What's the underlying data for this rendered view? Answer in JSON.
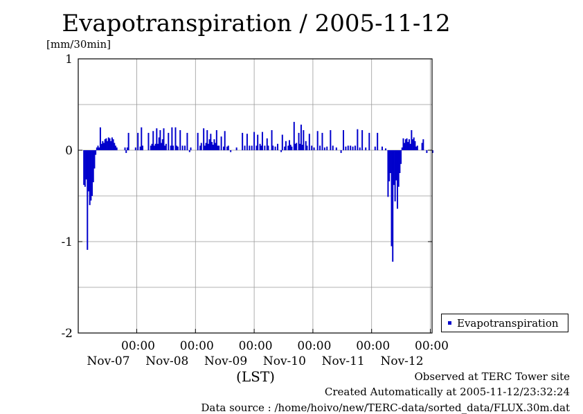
{
  "title": "Evapotranspiration / 2005-11-12",
  "units": "[mm/30min]",
  "footer": {
    "observed": "Observed at TERC Tower site",
    "created": "Created Automatically at 2005-11-12/23:32:24",
    "source": "Data source : /home/hoivo/new/TERC-data/sorted_data/FLUX.30m.dat"
  },
  "colors": {
    "series": "#0000cc",
    "grid": "#888888"
  },
  "chart_data": {
    "type": "bar",
    "title": "Evapotranspiration / 2005-11-12",
    "ylabel": "[mm/30min]",
    "xlabel": "(LST)",
    "ylim": [
      -2,
      1
    ],
    "yticks": [
      1,
      0,
      -1,
      -2
    ],
    "xlim_days": [
      -0.92,
      5.1
    ],
    "xticks": [
      {
        "time": "00:00",
        "date": "Nov-07"
      },
      {
        "time": "00:00",
        "date": "Nov-08"
      },
      {
        "time": "00:00",
        "date": "Nov-09"
      },
      {
        "time": "00:00",
        "date": "Nov-10"
      },
      {
        "time": "00:00",
        "date": "Nov-11"
      },
      {
        "time": "00:00",
        "date": "Nov-12"
      }
    ],
    "grid": true,
    "legend": "right",
    "series": [
      {
        "name": "Evapotranspiration",
        "points": [
          [
            -0.9,
            -0.38
          ],
          [
            -0.88,
            -0.4
          ],
          [
            -0.86,
            -0.32
          ],
          [
            -0.84,
            -1.09
          ],
          [
            -0.82,
            -0.45
          ],
          [
            -0.8,
            -0.6
          ],
          [
            -0.78,
            -0.55
          ],
          [
            -0.76,
            -0.5
          ],
          [
            -0.74,
            -0.35
          ],
          [
            -0.72,
            -0.2
          ],
          [
            -0.7,
            -0.05
          ],
          [
            -0.68,
            0.03
          ],
          [
            -0.66,
            0.05
          ],
          [
            -0.64,
            0.03
          ],
          [
            -0.62,
            0.25
          ],
          [
            -0.6,
            0.07
          ],
          [
            -0.58,
            0.1
          ],
          [
            -0.56,
            0.08
          ],
          [
            -0.54,
            0.12
          ],
          [
            -0.52,
            0.13
          ],
          [
            -0.5,
            0.1
          ],
          [
            -0.48,
            0.14
          ],
          [
            -0.46,
            0.13
          ],
          [
            -0.44,
            0.1
          ],
          [
            -0.42,
            0.14
          ],
          [
            -0.4,
            0.12
          ],
          [
            -0.38,
            0.08
          ],
          [
            -0.36,
            0.05
          ],
          [
            -0.34,
            0.03
          ],
          [
            -0.2,
            0.03
          ],
          [
            -0.18,
            -0.03
          ],
          [
            -0.16,
            0.03
          ],
          [
            -0.14,
            0.19
          ],
          [
            -0.02,
            0.03
          ],
          [
            0.02,
            0.19
          ],
          [
            0.06,
            0.04
          ],
          [
            0.08,
            0.25
          ],
          [
            0.1,
            0.05
          ],
          [
            0.2,
            0.19
          ],
          [
            0.24,
            0.05
          ],
          [
            0.26,
            0.07
          ],
          [
            0.28,
            0.21
          ],
          [
            0.3,
            0.05
          ],
          [
            0.32,
            0.07
          ],
          [
            0.34,
            0.24
          ],
          [
            0.36,
            0.07
          ],
          [
            0.38,
            0.14
          ],
          [
            0.4,
            0.22
          ],
          [
            0.42,
            0.08
          ],
          [
            0.44,
            0.12
          ],
          [
            0.46,
            0.24
          ],
          [
            0.48,
            0.05
          ],
          [
            0.5,
            0.07
          ],
          [
            0.54,
            0.19
          ],
          [
            0.58,
            0.05
          ],
          [
            0.6,
            0.25
          ],
          [
            0.62,
            0.05
          ],
          [
            0.66,
            0.25
          ],
          [
            0.68,
            0.05
          ],
          [
            0.7,
            0.04
          ],
          [
            0.74,
            0.22
          ],
          [
            0.78,
            0.05
          ],
          [
            0.82,
            0.05
          ],
          [
            0.86,
            0.19
          ],
          [
            0.9,
            -0.02
          ],
          [
            0.92,
            0.03
          ],
          [
            1.04,
            0.19
          ],
          [
            1.08,
            0.05
          ],
          [
            1.1,
            0.08
          ],
          [
            1.14,
            0.24
          ],
          [
            1.16,
            0.05
          ],
          [
            1.18,
            0.08
          ],
          [
            1.2,
            0.22
          ],
          [
            1.22,
            0.07
          ],
          [
            1.24,
            0.12
          ],
          [
            1.26,
            0.18
          ],
          [
            1.28,
            0.09
          ],
          [
            1.3,
            0.06
          ],
          [
            1.32,
            0.12
          ],
          [
            1.34,
            0.08
          ],
          [
            1.36,
            0.22
          ],
          [
            1.38,
            0.05
          ],
          [
            1.4,
            0.05
          ],
          [
            1.44,
            0.15
          ],
          [
            1.48,
            0.04
          ],
          [
            1.5,
            0.21
          ],
          [
            1.54,
            0.04
          ],
          [
            1.56,
            0.05
          ],
          [
            1.6,
            -0.02
          ],
          [
            1.7,
            0.03
          ],
          [
            1.8,
            0.19
          ],
          [
            1.84,
            0.05
          ],
          [
            1.88,
            0.18
          ],
          [
            1.92,
            0.05
          ],
          [
            1.96,
            0.05
          ],
          [
            2.0,
            0.2
          ],
          [
            2.04,
            0.05
          ],
          [
            2.06,
            0.17
          ],
          [
            2.1,
            0.07
          ],
          [
            2.12,
            0.05
          ],
          [
            2.14,
            0.2
          ],
          [
            2.18,
            0.05
          ],
          [
            2.22,
            0.13
          ],
          [
            2.24,
            0.05
          ],
          [
            2.3,
            0.22
          ],
          [
            2.32,
            0.05
          ],
          [
            2.36,
            0.04
          ],
          [
            2.4,
            0.07
          ],
          [
            2.46,
            -0.02
          ],
          [
            2.48,
            0.17
          ],
          [
            2.52,
            0.04
          ],
          [
            2.54,
            0.1
          ],
          [
            2.58,
            0.05
          ],
          [
            2.6,
            0.11
          ],
          [
            2.62,
            0.06
          ],
          [
            2.64,
            0.04
          ],
          [
            2.68,
            0.31
          ],
          [
            2.7,
            0.07
          ],
          [
            2.72,
            0.08
          ],
          [
            2.76,
            0.19
          ],
          [
            2.78,
            0.07
          ],
          [
            2.8,
            0.28
          ],
          [
            2.82,
            0.06
          ],
          [
            2.84,
            0.22
          ],
          [
            2.88,
            0.1
          ],
          [
            2.9,
            0.05
          ],
          [
            2.94,
            0.18
          ],
          [
            2.98,
            0.05
          ],
          [
            3.02,
            0.03
          ],
          [
            3.08,
            0.21
          ],
          [
            3.12,
            0.05
          ],
          [
            3.16,
            0.19
          ],
          [
            3.2,
            0.03
          ],
          [
            3.24,
            0.04
          ],
          [
            3.3,
            0.22
          ],
          [
            3.34,
            0.05
          ],
          [
            3.4,
            0.03
          ],
          [
            3.48,
            -0.03
          ],
          [
            3.52,
            0.22
          ],
          [
            3.56,
            0.04
          ],
          [
            3.6,
            0.05
          ],
          [
            3.64,
            0.05
          ],
          [
            3.68,
            0.04
          ],
          [
            3.72,
            0.05
          ],
          [
            3.76,
            0.23
          ],
          [
            3.8,
            0.03
          ],
          [
            3.84,
            0.22
          ],
          [
            3.9,
            0.03
          ],
          [
            3.96,
            0.19
          ],
          [
            4.06,
            0.04
          ],
          [
            4.1,
            0.19
          ],
          [
            4.18,
            0.04
          ],
          [
            4.24,
            0.02
          ],
          [
            4.28,
            -0.51
          ],
          [
            4.3,
            -0.34
          ],
          [
            4.32,
            -0.25
          ],
          [
            4.34,
            -1.05
          ],
          [
            4.36,
            -1.22
          ],
          [
            4.38,
            -0.38
          ],
          [
            4.4,
            -0.56
          ],
          [
            4.42,
            -0.33
          ],
          [
            4.44,
            -0.64
          ],
          [
            4.46,
            -0.4
          ],
          [
            4.48,
            -0.25
          ],
          [
            4.5,
            -0.15
          ],
          [
            4.52,
            0.03
          ],
          [
            4.54,
            0.13
          ],
          [
            4.56,
            0.08
          ],
          [
            4.58,
            0.12
          ],
          [
            4.6,
            0.13
          ],
          [
            4.62,
            0.09
          ],
          [
            4.64,
            0.12
          ],
          [
            4.66,
            0.07
          ],
          [
            4.68,
            0.22
          ],
          [
            4.7,
            0.12
          ],
          [
            4.72,
            0.14
          ],
          [
            4.74,
            0.1
          ],
          [
            4.76,
            0.04
          ],
          [
            4.78,
            0.05
          ],
          [
            4.86,
            0.08
          ],
          [
            4.88,
            0.12
          ],
          [
            4.94,
            -0.03
          ],
          [
            5.04,
            -0.03
          ]
        ]
      }
    ]
  }
}
